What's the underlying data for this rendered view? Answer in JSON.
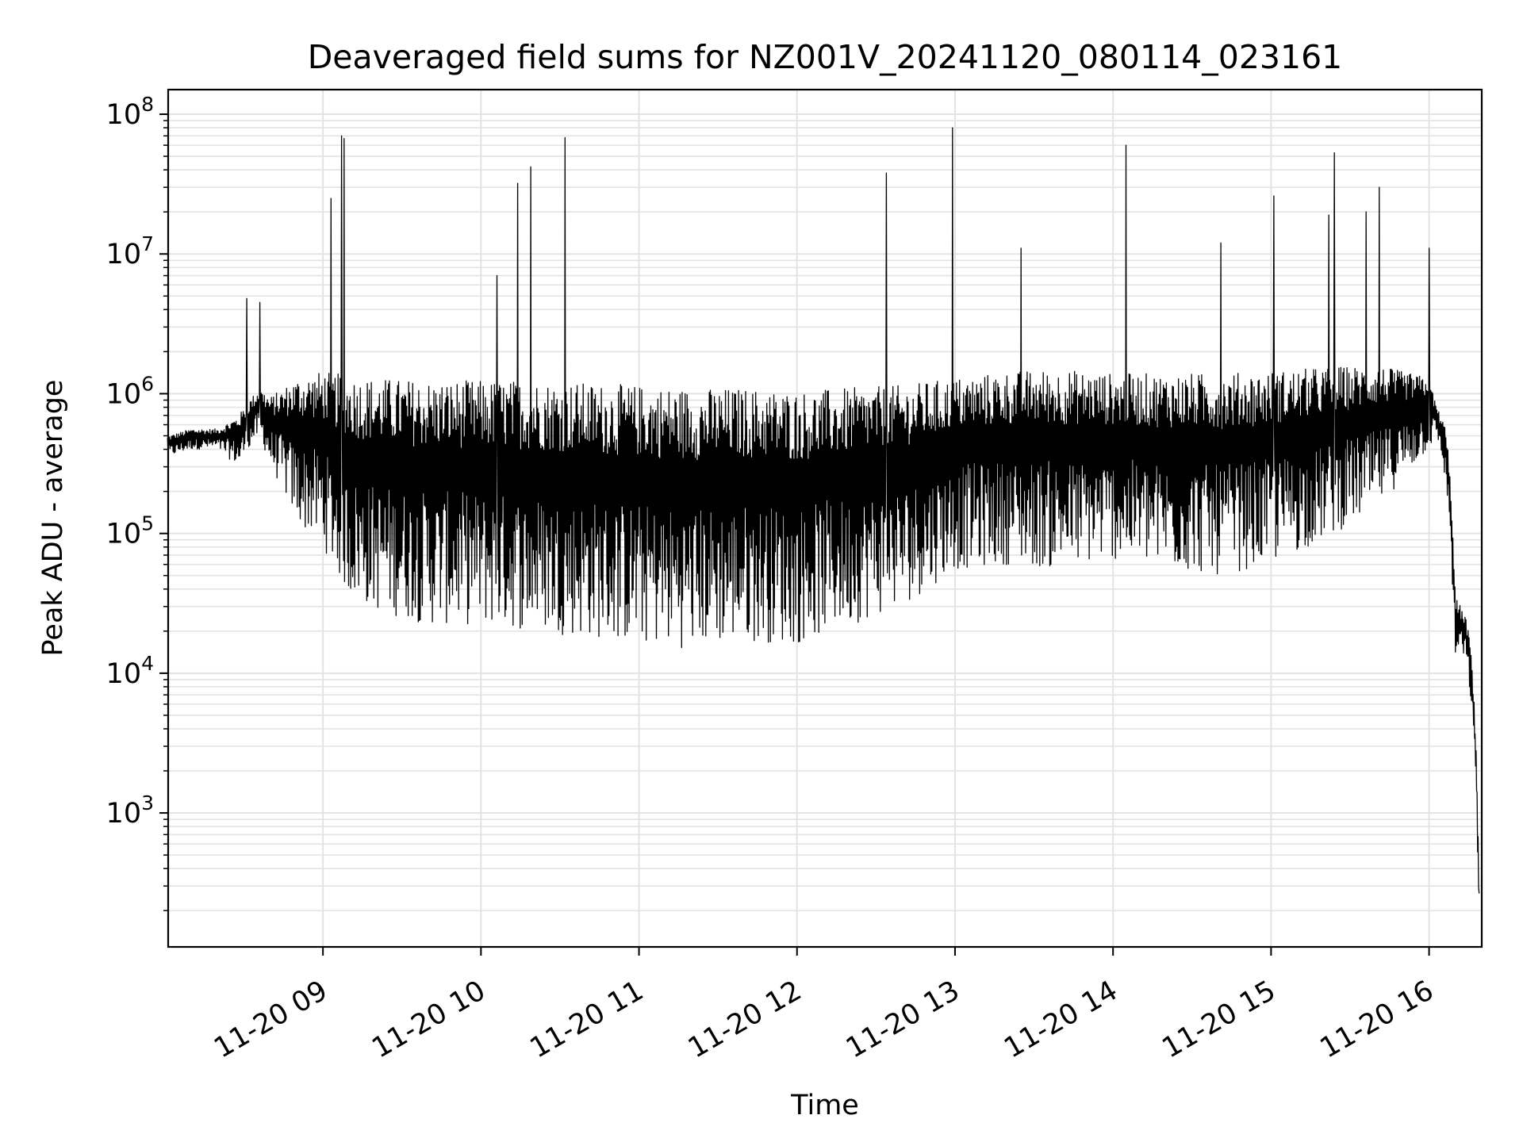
{
  "chart_data": {
    "type": "line",
    "title": "Deaveraged field sums for NZ001V_20241120_080114_023161",
    "xlabel": "Time",
    "ylabel": "Peak ADU - average",
    "yscale": "log",
    "ylim": [
      110,
      150000000
    ],
    "xlim": [
      "2024-11-20 08:01:14",
      "2024-11-20 16:20:00"
    ],
    "grid": true,
    "x_ticks": [
      {
        "value": "2024-11-20 09:00",
        "label": "11-20 09"
      },
      {
        "value": "2024-11-20 10:00",
        "label": "11-20 10"
      },
      {
        "value": "2024-11-20 11:00",
        "label": "11-20 11"
      },
      {
        "value": "2024-11-20 12:00",
        "label": "11-20 12"
      },
      {
        "value": "2024-11-20 13:00",
        "label": "11-20 13"
      },
      {
        "value": "2024-11-20 14:00",
        "label": "11-20 14"
      },
      {
        "value": "2024-11-20 15:00",
        "label": "11-20 15"
      },
      {
        "value": "2024-11-20 16:00",
        "label": "11-20 16"
      }
    ],
    "y_ticks": [
      {
        "value": 1000,
        "base": "10",
        "exp": "3"
      },
      {
        "value": 10000,
        "base": "10",
        "exp": "4"
      },
      {
        "value": 100000,
        "base": "10",
        "exp": "5"
      },
      {
        "value": 1000000,
        "base": "10",
        "exp": "6"
      },
      {
        "value": 10000000,
        "base": "10",
        "exp": "7"
      },
      {
        "value": 100000000,
        "base": "10",
        "exp": "8"
      }
    ],
    "series": [
      {
        "color": "#000000",
        "x": [
          "2024-11-20 08:01",
          "2024-11-20 08:10",
          "2024-11-20 08:20",
          "2024-11-20 08:28",
          "2024-11-20 08:32",
          "2024-11-20 08:36",
          "2024-11-20 08:40",
          "2024-11-20 08:45",
          "2024-11-20 08:50",
          "2024-11-20 09:00",
          "2024-11-20 09:10",
          "2024-11-20 09:20",
          "2024-11-20 09:40",
          "2024-11-20 10:00",
          "2024-11-20 10:20",
          "2024-11-20 10:40",
          "2024-11-20 11:00",
          "2024-11-20 11:20",
          "2024-11-20 11:40",
          "2024-11-20 12:00",
          "2024-11-20 12:20",
          "2024-11-20 12:40",
          "2024-11-20 13:00",
          "2024-11-20 13:20",
          "2024-11-20 13:40",
          "2024-11-20 14:00",
          "2024-11-20 14:20",
          "2024-11-20 14:40",
          "2024-11-20 15:00",
          "2024-11-20 15:20",
          "2024-11-20 15:40",
          "2024-11-20 16:00",
          "2024-11-20 16:03",
          "2024-11-20 16:06",
          "2024-11-20 16:08",
          "2024-11-20 16:10",
          "2024-11-20 16:12",
          "2024-11-20 16:14",
          "2024-11-20 16:16",
          "2024-11-20 16:18",
          "2024-11-20 16:19"
        ],
        "upper": [
          500000,
          560000,
          560000,
          700000,
          900000,
          1100000,
          950000,
          1100000,
          1300000,
          1450000,
          1350000,
          1300000,
          1250000,
          1250000,
          1250000,
          1200000,
          1150000,
          1100000,
          1100000,
          1050000,
          1100000,
          1150000,
          1300000,
          1450000,
          1500000,
          1400000,
          1400000,
          1400000,
          1450000,
          1550000,
          1600000,
          1300000,
          800000,
          600000,
          300000,
          35000,
          30000,
          25000,
          15000,
          3000,
          300
        ],
        "lower": [
          350000,
          400000,
          400000,
          300000,
          400000,
          500000,
          300000,
          200000,
          120000,
          80000,
          35000,
          28000,
          22000,
          22000,
          20000,
          18000,
          16000,
          15000,
          17000,
          16000,
          22000,
          30000,
          55000,
          60000,
          55000,
          65000,
          55000,
          50000,
          60000,
          90000,
          150000,
          400000,
          500000,
          250000,
          100000,
          12000,
          14000,
          12000,
          6000,
          1200,
          150
        ],
        "spikes": [
          {
            "x": "2024-11-20 08:31",
            "y": 4800000
          },
          {
            "x": "2024-11-20 08:36",
            "y": 4500000
          },
          {
            "x": "2024-11-20 09:03",
            "y": 25000000
          },
          {
            "x": "2024-11-20 09:07",
            "y": 70000000
          },
          {
            "x": "2024-11-20 09:08",
            "y": 67000000
          },
          {
            "x": "2024-11-20 10:06",
            "y": 7000000
          },
          {
            "x": "2024-11-20 10:14",
            "y": 32000000
          },
          {
            "x": "2024-11-20 10:19",
            "y": 42000000
          },
          {
            "x": "2024-11-20 10:32",
            "y": 68000000
          },
          {
            "x": "2024-11-20 12:34",
            "y": 38000000
          },
          {
            "x": "2024-11-20 12:59",
            "y": 80000000
          },
          {
            "x": "2024-11-20 13:25",
            "y": 11000000
          },
          {
            "x": "2024-11-20 14:05",
            "y": 60000000
          },
          {
            "x": "2024-11-20 14:41",
            "y": 12000000
          },
          {
            "x": "2024-11-20 15:01",
            "y": 26000000
          },
          {
            "x": "2024-11-20 15:22",
            "y": 19000000
          },
          {
            "x": "2024-11-20 15:24",
            "y": 53000000
          },
          {
            "x": "2024-11-20 15:36",
            "y": 20000000
          },
          {
            "x": "2024-11-20 15:41",
            "y": 30000000
          },
          {
            "x": "2024-11-20 16:00",
            "y": 11000000
          }
        ]
      }
    ]
  }
}
